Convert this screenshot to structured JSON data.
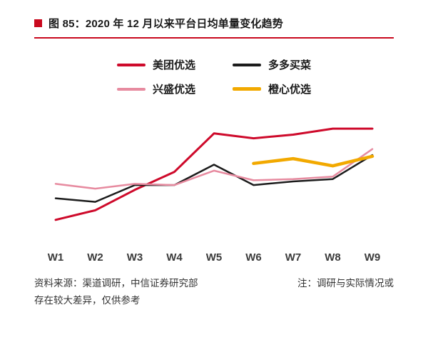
{
  "figure": {
    "title": "图 85：2020 年 12 月以来平台日均单量变化趋势"
  },
  "colors": {
    "accent_red": "#c9091e",
    "axis_text": "#3b3b3b",
    "footer_text": "#333333"
  },
  "chart_data": {
    "type": "line",
    "title": "2020 年 12 月以来平台日均单量变化趋势",
    "categories": [
      "W1",
      "W2",
      "W3",
      "W4",
      "W5",
      "W6",
      "W7",
      "W8",
      "W9"
    ],
    "series": [
      {
        "name": "美团优选",
        "color": "#ce0a2b",
        "width": 3,
        "values": [
          15,
          23,
          40,
          55,
          87,
          83,
          86,
          91,
          91
        ]
      },
      {
        "name": "多多买菜",
        "color": "#1c1c1c",
        "width": 2.5,
        "values": [
          33,
          30,
          44,
          44,
          61,
          44,
          47,
          49,
          69
        ]
      },
      {
        "name": "兴盛优选",
        "color": "#e78ba0",
        "width": 2.5,
        "values": [
          45,
          41,
          45,
          44,
          56,
          48,
          49,
          51,
          74
        ]
      },
      {
        "name": "橙心优选",
        "color": "#f2a900",
        "width": 4.5,
        "values": [
          null,
          null,
          null,
          null,
          null,
          62,
          66,
          60,
          68
        ]
      }
    ],
    "xlabel": "",
    "ylabel": "",
    "ylim": [
      0,
      100
    ],
    "grid": false,
    "y_axis_visible": false,
    "legend_position": "top"
  },
  "footer": {
    "source": "资料来源：渠道调研，中信证券研究部",
    "note_line1": "注：调研与实际情况或",
    "note_line2": "存在较大差异，仅供参考"
  }
}
